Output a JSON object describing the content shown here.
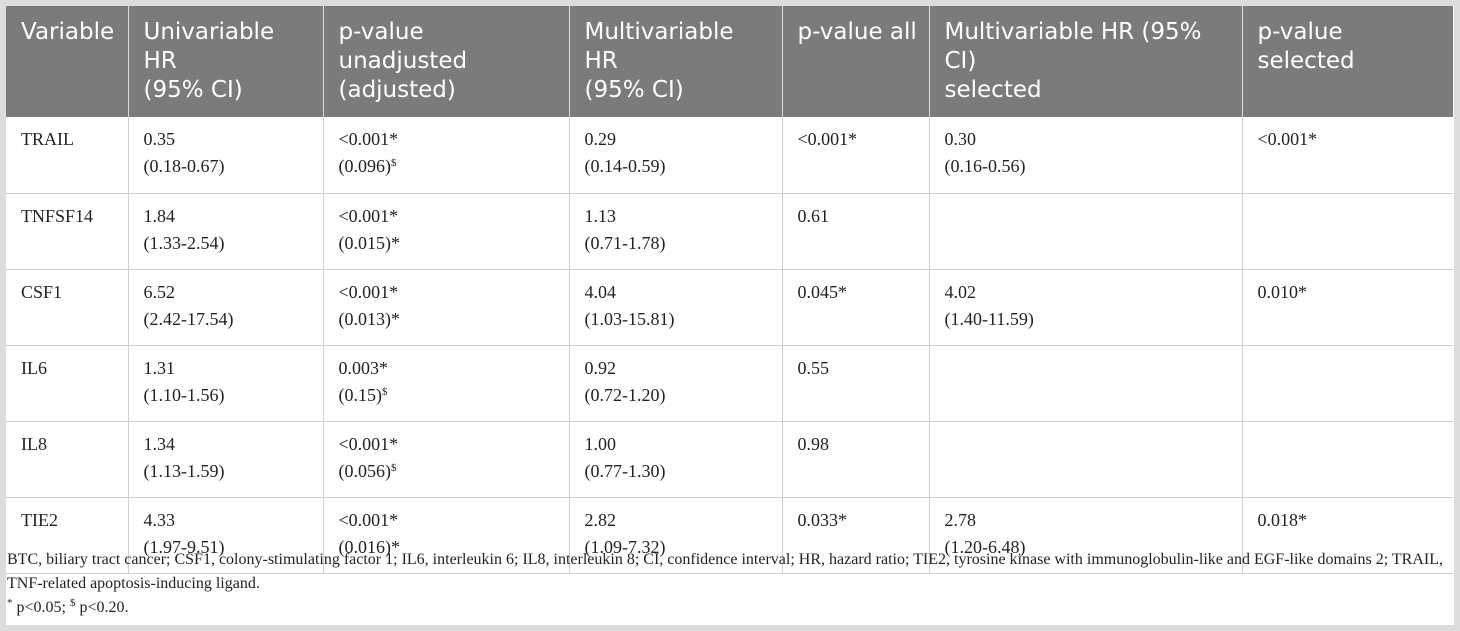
{
  "table": {
    "headers": [
      [
        "Variable"
      ],
      [
        "Univariable HR",
        "(95% CI)"
      ],
      [
        "p-value unadjusted",
        "(adjusted)"
      ],
      [
        "Multivariable HR",
        "(95% CI)"
      ],
      [
        "p-value all"
      ],
      [
        "Multivariable HR (95% CI)",
        "selected"
      ],
      [
        "p-value selected"
      ]
    ],
    "rows": [
      {
        "variable": "TRAIL",
        "uni_hr": "0.35",
        "uni_ci": "(0.18-0.67)",
        "p_unadj": "<0.001*",
        "p_adj": "(0.096)",
        "p_adj_mark": "$",
        "multi_hr": "0.29",
        "multi_ci": "(0.14-0.59)",
        "p_all": "<0.001*",
        "sel_hr": "0.30",
        "sel_ci": "(0.16-0.56)",
        "p_sel": "<0.001*"
      },
      {
        "variable": "TNFSF14",
        "uni_hr": "1.84",
        "uni_ci": "(1.33-2.54)",
        "p_unadj": "<0.001*",
        "p_adj": "(0.015)*",
        "p_adj_mark": "",
        "multi_hr": "1.13",
        "multi_ci": "(0.71-1.78)",
        "p_all": "0.61",
        "sel_hr": "",
        "sel_ci": "",
        "p_sel": ""
      },
      {
        "variable": "CSF1",
        "uni_hr": "6.52",
        "uni_ci": "(2.42-17.54)",
        "p_unadj": "<0.001*",
        "p_adj": "(0.013)*",
        "p_adj_mark": "",
        "multi_hr": "4.04",
        "multi_ci": "(1.03-15.81)",
        "p_all": "0.045*",
        "sel_hr": "4.02",
        "sel_ci": "(1.40-11.59)",
        "p_sel": "0.010*"
      },
      {
        "variable": "IL6",
        "uni_hr": "1.31",
        "uni_ci": "(1.10-1.56)",
        "p_unadj": "0.003*",
        "p_adj": "(0.15)",
        "p_adj_mark": "$",
        "multi_hr": "0.92",
        "multi_ci": "(0.72-1.20)",
        "p_all": "0.55",
        "sel_hr": "",
        "sel_ci": "",
        "p_sel": ""
      },
      {
        "variable": "IL8",
        "uni_hr": "1.34",
        "uni_ci": "(1.13-1.59)",
        "p_unadj": "<0.001*",
        "p_adj": "(0.056)",
        "p_adj_mark": "$",
        "multi_hr": "1.00",
        "multi_ci": "(0.77-1.30)",
        "p_all": "0.98",
        "sel_hr": "",
        "sel_ci": "",
        "p_sel": ""
      },
      {
        "variable": "TIE2",
        "uni_hr": "4.33",
        "uni_ci": "(1.97-9.51)",
        "p_unadj": "<0.001*",
        "p_adj": "(0.016)*",
        "p_adj_mark": "",
        "multi_hr": "2.82",
        "multi_ci": "(1.09-7.32)",
        "p_all": "0.033*",
        "sel_hr": "2.78",
        "sel_ci": "(1.20-6.48)",
        "p_sel": "0.018*"
      }
    ]
  },
  "footnote": {
    "abbreviations": "BTC, biliary tract cancer; CSF1, colony-stimulating factor 1; IL6, interleukin 6; IL8, interleukin 8; CI, confidence interval; HR, hazard ratio; TIE2, tyrosine kinase with immunoglobulin-like and EGF-like domains 2; TRAIL, TNF-related apoptosis-inducing ligand.",
    "sig_mark": "*",
    "sig_text": " p<0.05; ",
    "trend_mark": "$",
    "trend_text": " p<0.20."
  },
  "colors": {
    "header_bg": "#7b7b7b",
    "header_text": "#ffffff",
    "border": "#cfcfcf",
    "frame": "#dcdcdc"
  }
}
